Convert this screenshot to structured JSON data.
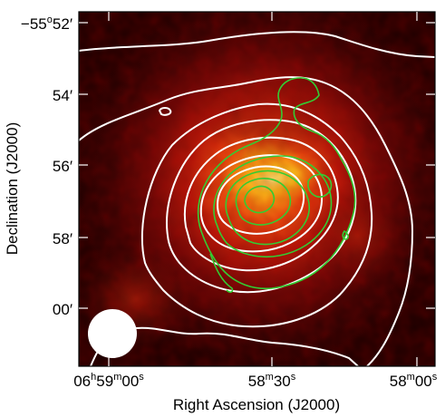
{
  "figure": {
    "xlabel": "Right Ascension (J2000)",
    "ylabel": "Declination (J2000)",
    "x_ticks": [
      {
        "h": "06",
        "hu": "h",
        "m": "59",
        "mu": "m",
        "s": "00",
        "su": "s"
      },
      {
        "m": "58",
        "mu": "m",
        "s": "30",
        "su": "s"
      },
      {
        "m": "58",
        "mu": "m",
        "s": "00",
        "su": "s"
      }
    ],
    "y_ticks": [
      {
        "deg": "−55",
        "deg_sym": "o",
        "min": "52",
        "min_sym": "′"
      },
      {
        "min": "54",
        "min_sym": "′"
      },
      {
        "min": "56",
        "min_sym": "′"
      },
      {
        "min": "58",
        "min_sym": "′"
      },
      {
        "min": "00",
        "min_sym": "′"
      }
    ],
    "colors": {
      "background": "#1a0000",
      "glow_mid": "#8b0000",
      "glow_core": "#ffd21a",
      "contour_white": "#ffffff",
      "contour_green": "#33cc33",
      "beam": "#ffffff"
    }
  }
}
